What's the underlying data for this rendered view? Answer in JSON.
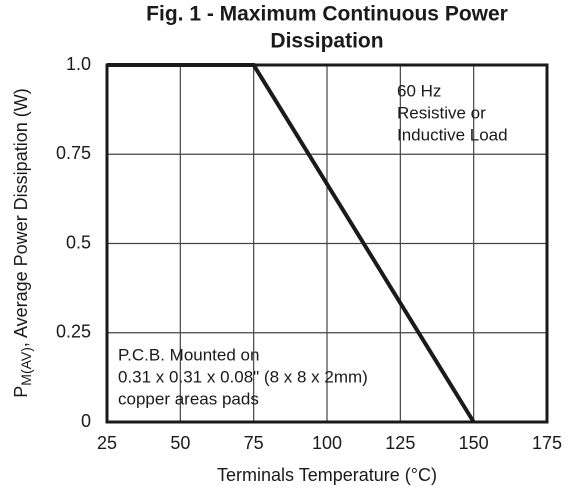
{
  "chart_data": {
    "type": "line",
    "title": [
      "Fig. 1 - Maximum Continuous Power",
      "Dissipation"
    ],
    "xlabel": "Terminals Temperature (°C)",
    "ylabel": {
      "base": "P",
      "sub": "M(AV)",
      "rest": ", Average Power Dissipation (W)"
    },
    "x": [
      25,
      75,
      150
    ],
    "values": [
      1,
      1,
      0
    ],
    "color": "#1a1a1a",
    "xlim": [
      25,
      175
    ],
    "xticks": [
      25,
      50,
      75,
      100,
      125,
      150,
      175
    ],
    "ylim": [
      0,
      1
    ],
    "yticks": [
      0,
      0.25,
      0.5,
      0.75,
      {
        "value": 1,
        "label": "1.0"
      }
    ],
    "grid": true,
    "annotations": [
      {
        "lines": [
          "60 Hz",
          "Resistive or",
          "Inductive Load"
        ]
      },
      {
        "lines": [
          "P.C.B. Mounted on",
          "0.31 x 0.31 x 0.08\" (8 x 8 x 2mm)",
          "copper areas pads"
        ]
      }
    ]
  }
}
